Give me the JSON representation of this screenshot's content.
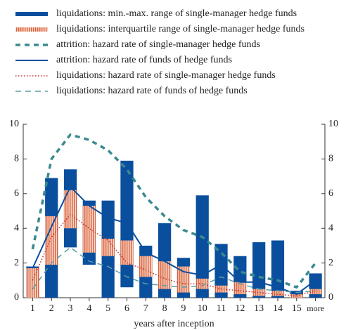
{
  "chart_data": {
    "type": "bar",
    "x_label": "years after inception",
    "categories": [
      "1",
      "2",
      "3",
      "4",
      "5",
      "6",
      "7",
      "8",
      "9",
      "10",
      "11",
      "12",
      "13",
      "14",
      "15",
      "more"
    ],
    "ylim": [
      0,
      10
    ],
    "yticks": [
      0,
      2,
      4,
      6,
      8,
      10
    ],
    "y2lim": [
      0,
      10
    ],
    "y2ticks": [
      0,
      2,
      4,
      6,
      8,
      10
    ],
    "series": [
      {
        "name": "liquidations: min.-max. range of single-manager hedge funds",
        "kind": "range",
        "color": "#0a4f9e",
        "low": [
          0,
          0,
          2.9,
          1.9,
          0,
          0.6,
          0,
          0,
          0,
          0,
          0,
          0,
          0,
          0,
          0,
          0
        ],
        "high": [
          1.8,
          6.9,
          7.4,
          5.6,
          5.6,
          7.9,
          3.0,
          4.3,
          2.3,
          5.9,
          3.1,
          2.4,
          3.2,
          3.3,
          0.4,
          1.4
        ]
      },
      {
        "name": "liquidations: interquartile range of single-manager hedge funds",
        "kind": "hatched-range",
        "color": "#d9603b",
        "low": [
          0,
          1.9,
          4.0,
          2.6,
          2.4,
          1.9,
          1.2,
          0.5,
          0.3,
          0.5,
          0.3,
          0.2,
          0.1,
          0.1,
          0,
          0.2
        ],
        "high": [
          1.7,
          4.7,
          6.2,
          5.3,
          3.4,
          3.3,
          2.4,
          2.1,
          1.8,
          1.1,
          0.7,
          0.9,
          0.5,
          0.4,
          0.2,
          0.5
        ]
      },
      {
        "name": "attrition: hazard rate of single-manager hedge funds",
        "kind": "line",
        "style": "dashed-thick",
        "color": "#3a8a8f",
        "values": [
          2.8,
          8.0,
          9.4,
          9.1,
          8.5,
          7.4,
          5.8,
          4.7,
          3.9,
          3.5,
          2.6,
          1.5,
          1.2,
          1.0,
          0.6,
          2.0
        ]
      },
      {
        "name": "attrition: hazard rate of funds of hedge funds",
        "kind": "line",
        "style": "solid",
        "color": "#0a4f9e",
        "values": [
          1.7,
          4.1,
          6.4,
          5.3,
          4.6,
          4.3,
          2.6,
          2.1,
          1.5,
          1.3,
          1.9,
          0.9,
          0.9,
          0.6,
          0.2,
          1.0
        ]
      },
      {
        "name": "liquidations: hazard rate of single-manager hedge funds",
        "kind": "line",
        "style": "dotted",
        "color": "#c0302a",
        "values": [
          1.0,
          3.5,
          4.8,
          4.0,
          3.3,
          2.0,
          1.6,
          1.1,
          0.8,
          0.8,
          0.5,
          0.4,
          0.3,
          0.2,
          0.1,
          0.4
        ]
      },
      {
        "name": "liquidations: hazard rate of funds of hedge funds",
        "kind": "line",
        "style": "dashed",
        "color": "#5a9ea8",
        "values": [
          0.5,
          2.0,
          2.9,
          2.1,
          1.8,
          1.2,
          0.8,
          0.7,
          0.6,
          0.7,
          1.2,
          0.8,
          0.5,
          0.4,
          0.3,
          0.4
        ]
      }
    ]
  }
}
